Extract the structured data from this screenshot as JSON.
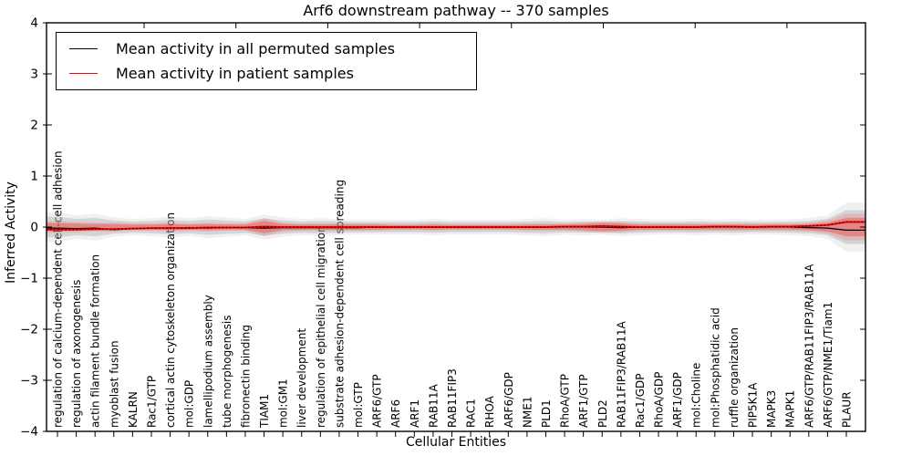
{
  "title": "Arf6 downstream pathway -- 370 samples",
  "legend": {
    "items": [
      {
        "label": "Mean activity in all permuted samples",
        "color": "#000000"
      },
      {
        "label": "Mean activity in patient samples",
        "color": "#ff0000"
      }
    ]
  },
  "chart_data": {
    "type": "line",
    "title": "Arf6 downstream pathway -- 370 samples",
    "xlabel": "Cellular Entities",
    "ylabel": "Inferred Activity",
    "ylim": [
      -4,
      4
    ],
    "grid": false,
    "legend_position": "upper left",
    "ytick_values": [
      4,
      3,
      2,
      1,
      0,
      -1,
      -2,
      -3,
      -4
    ],
    "ytick_labels": [
      "4",
      "3",
      "2",
      "1",
      "0",
      "−1",
      "−2",
      "−3",
      "−4"
    ],
    "categories": [
      "regulation of calcium-dependent cell-cell adhesion",
      "regulation of axonogenesis",
      "actin filament bundle formation",
      "myoblast fusion",
      "KALRN",
      "Rac1/GTP",
      "cortical actin cytoskeleton organization",
      "mol:GDP",
      "lamellipodium assembly",
      "tube morphogenesis",
      "fibronectin binding",
      "TIAM1",
      "mol:GM1",
      "liver development",
      "regulation of epithelial cell migration",
      "substrate adhesion-dependent cell spreading",
      "mol:GTP",
      "ARF6/GTP",
      "ARF6",
      "ARF1",
      "RAB11A",
      "RAB11FIP3",
      "RAC1",
      "RHOA",
      "ARF6/GDP",
      "NME1",
      "PLD1",
      "RhoA/GTP",
      "ARF1/GTP",
      "PLD2",
      "RAB11FIP3/RAB11A",
      "Rac1/GDP",
      "RhoA/GDP",
      "ARF1/GDP",
      "mol:Choline",
      "mol:Phosphatidic acid",
      "ruffle organization",
      "PIP5K1A",
      "MAPK3",
      "MAPK1",
      "ARF6/GTP/RAB11FIP3/RAB11A",
      "ARF6/GTP/NME1/Tiam1",
      "PLAUR"
    ],
    "series": [
      {
        "name": "Mean activity in all permuted samples",
        "color": "#000000",
        "values": [
          -0.02,
          -0.03,
          -0.02,
          -0.05,
          -0.03,
          -0.02,
          -0.02,
          -0.01,
          -0.02,
          -0.01,
          -0.01,
          -0.02,
          -0.01,
          -0.01,
          -0.01,
          -0.01,
          -0.01,
          0,
          0,
          0,
          0,
          0,
          0,
          0,
          0,
          0,
          0,
          0,
          0,
          0,
          -0.01,
          0,
          0,
          0,
          0,
          0,
          0,
          0,
          0,
          0,
          -0.01,
          -0.02,
          -0.06
        ]
      },
      {
        "name": "Mean activity in patient samples",
        "color": "#ff0000",
        "values": [
          -0.05,
          -0.05,
          -0.04,
          -0.04,
          -0.03,
          -0.02,
          -0.02,
          -0.02,
          -0.01,
          -0.01,
          -0.01,
          0.01,
          0,
          0,
          0,
          0,
          0,
          0,
          0,
          0,
          0,
          0,
          0,
          0,
          0,
          0,
          0,
          0.01,
          0.01,
          0.02,
          0.01,
          0,
          0,
          0,
          0,
          0.01,
          0.01,
          0,
          0.01,
          0.01,
          0.02,
          0.04,
          0.1
        ]
      }
    ],
    "bands": [
      {
        "name": "permuted samples range",
        "color": "#aaaaaa",
        "half_widths": [
          0.2,
          0.16,
          0.18,
          0.13,
          0.11,
          0.12,
          0.14,
          0.12,
          0.15,
          0.13,
          0.11,
          0.17,
          0.13,
          0.11,
          0.12,
          0.11,
          0.1,
          0.1,
          0.1,
          0.1,
          0.11,
          0.1,
          0.1,
          0.1,
          0.1,
          0.11,
          0.12,
          0.1,
          0.11,
          0.1,
          0.12,
          0.11,
          0.1,
          0.1,
          0.11,
          0.1,
          0.11,
          0.1,
          0.1,
          0.11,
          0.12,
          0.16,
          0.33
        ]
      },
      {
        "name": "patient samples range",
        "color": "#ff0000",
        "half_widths": [
          0.08,
          0.07,
          0.06,
          0.06,
          0.05,
          0.05,
          0.06,
          0.05,
          0.06,
          0.05,
          0.05,
          0.12,
          0.06,
          0.05,
          0.05,
          0.05,
          0.05,
          0.05,
          0.04,
          0.04,
          0.05,
          0.04,
          0.04,
          0.04,
          0.04,
          0.05,
          0.05,
          0.05,
          0.06,
          0.08,
          0.07,
          0.05,
          0.05,
          0.05,
          0.05,
          0.05,
          0.05,
          0.05,
          0.05,
          0.05,
          0.06,
          0.09,
          0.18
        ]
      }
    ]
  }
}
